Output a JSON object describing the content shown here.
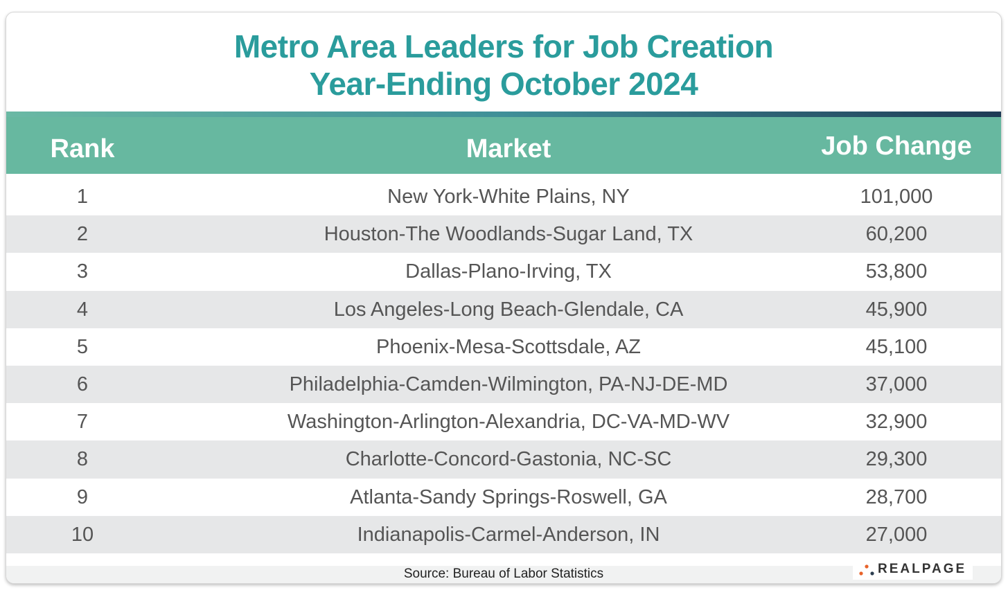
{
  "title_line1": "Metro Area Leaders for Job Creation",
  "title_line2": "Year-Ending October 2024",
  "columns": {
    "rank": "Rank",
    "market": "Market",
    "change": "Job Change"
  },
  "rows": [
    {
      "rank": "1",
      "market": "New York-White Plains, NY",
      "change": "101,000"
    },
    {
      "rank": "2",
      "market": "Houston-The Woodlands-Sugar Land, TX",
      "change": "60,200"
    },
    {
      "rank": "3",
      "market": "Dallas-Plano-Irving, TX",
      "change": "53,800"
    },
    {
      "rank": "4",
      "market": "Los Angeles-Long Beach-Glendale, CA",
      "change": "45,900"
    },
    {
      "rank": "5",
      "market": "Phoenix-Mesa-Scottsdale, AZ",
      "change": "45,100"
    },
    {
      "rank": "6",
      "market": "Philadelphia-Camden-Wilmington, PA-NJ-DE-MD",
      "change": "37,000"
    },
    {
      "rank": "7",
      "market": "Washington-Arlington-Alexandria, DC-VA-MD-WV",
      "change": "32,900"
    },
    {
      "rank": "8",
      "market": "Charlotte-Concord-Gastonia, NC-SC",
      "change": "29,300"
    },
    {
      "rank": "9",
      "market": "Atlanta-Sandy Springs-Roswell, GA",
      "change": "28,700"
    },
    {
      "rank": "10",
      "market": "Indianapolis-Carmel-Anderson, IN",
      "change": "27,000"
    }
  ],
  "source": "Source: Bureau of Labor Statistics",
  "logo_text": "REALPAGE",
  "colors": {
    "title": "#2a9c9c",
    "header_bg": "#67b8a0",
    "alt_row_bg": "#e6e7e8",
    "logo_dot_orange": "#e8632a",
    "logo_dot_dark": "#2d3e50"
  },
  "chart_data": {
    "type": "table",
    "title": "Metro Area Leaders for Job Creation",
    "subtitle": "Year-Ending October 2024",
    "columns": [
      "Rank",
      "Market",
      "Job Change"
    ],
    "categories": [
      "New York-White Plains, NY",
      "Houston-The Woodlands-Sugar Land, TX",
      "Dallas-Plano-Irving, TX",
      "Los Angeles-Long Beach-Glendale, CA",
      "Phoenix-Mesa-Scottsdale, AZ",
      "Philadelphia-Camden-Wilmington, PA-NJ-DE-MD",
      "Washington-Arlington-Alexandria, DC-VA-MD-WV",
      "Charlotte-Concord-Gastonia, NC-SC",
      "Atlanta-Sandy Springs-Roswell, GA",
      "Indianapolis-Carmel-Anderson, IN"
    ],
    "values": [
      101000,
      60200,
      53800,
      45900,
      45100,
      37000,
      32900,
      29300,
      28700,
      27000
    ]
  }
}
